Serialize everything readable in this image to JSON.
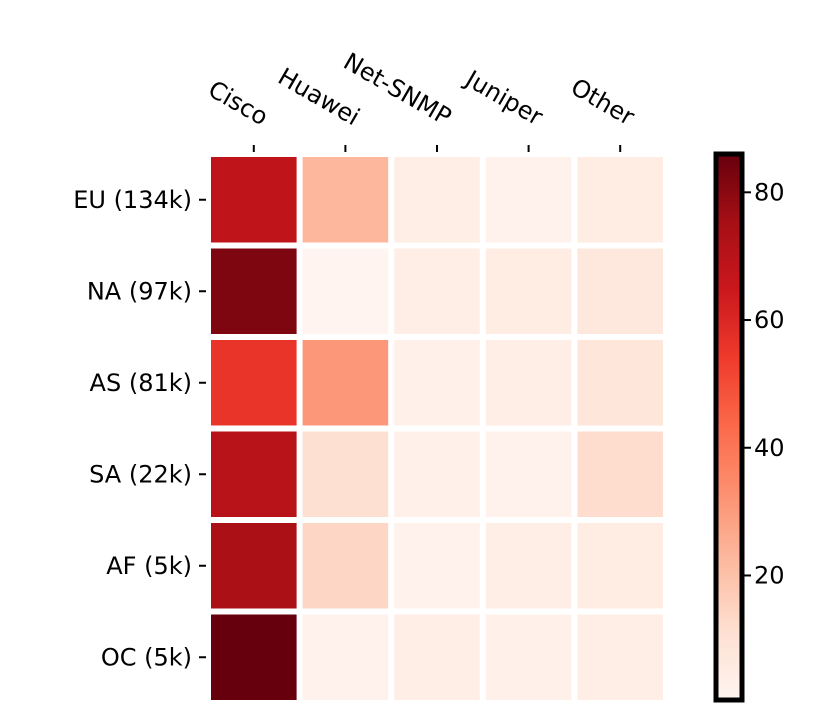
{
  "chart_data": {
    "type": "heatmap",
    "title": "",
    "xlabel": "",
    "ylabel": "",
    "columns": [
      "Cisco",
      "Huawei",
      "Net-SNMP",
      "Juniper",
      "Other"
    ],
    "rows": [
      "EU (134k)",
      "NA (97k)",
      "AS (81k)",
      "SA (22k)",
      "AF (5k)",
      "OC (5k)"
    ],
    "values": [
      [
        68,
        23,
        4,
        2,
        5
      ],
      [
        82,
        1,
        4,
        5,
        7
      ],
      [
        56,
        31,
        3,
        4,
        8
      ],
      [
        70,
        11,
        3,
        2,
        12
      ],
      [
        74,
        14,
        2,
        4,
        5
      ],
      [
        86,
        2,
        4,
        3,
        4
      ]
    ],
    "colorbar": {
      "vmin": 0.5,
      "vmax": 86,
      "ticks": [
        20,
        40,
        60,
        80
      ],
      "colormap": "Reds"
    },
    "x_tick_position": "top",
    "x_tick_rotation": "-30deg"
  }
}
